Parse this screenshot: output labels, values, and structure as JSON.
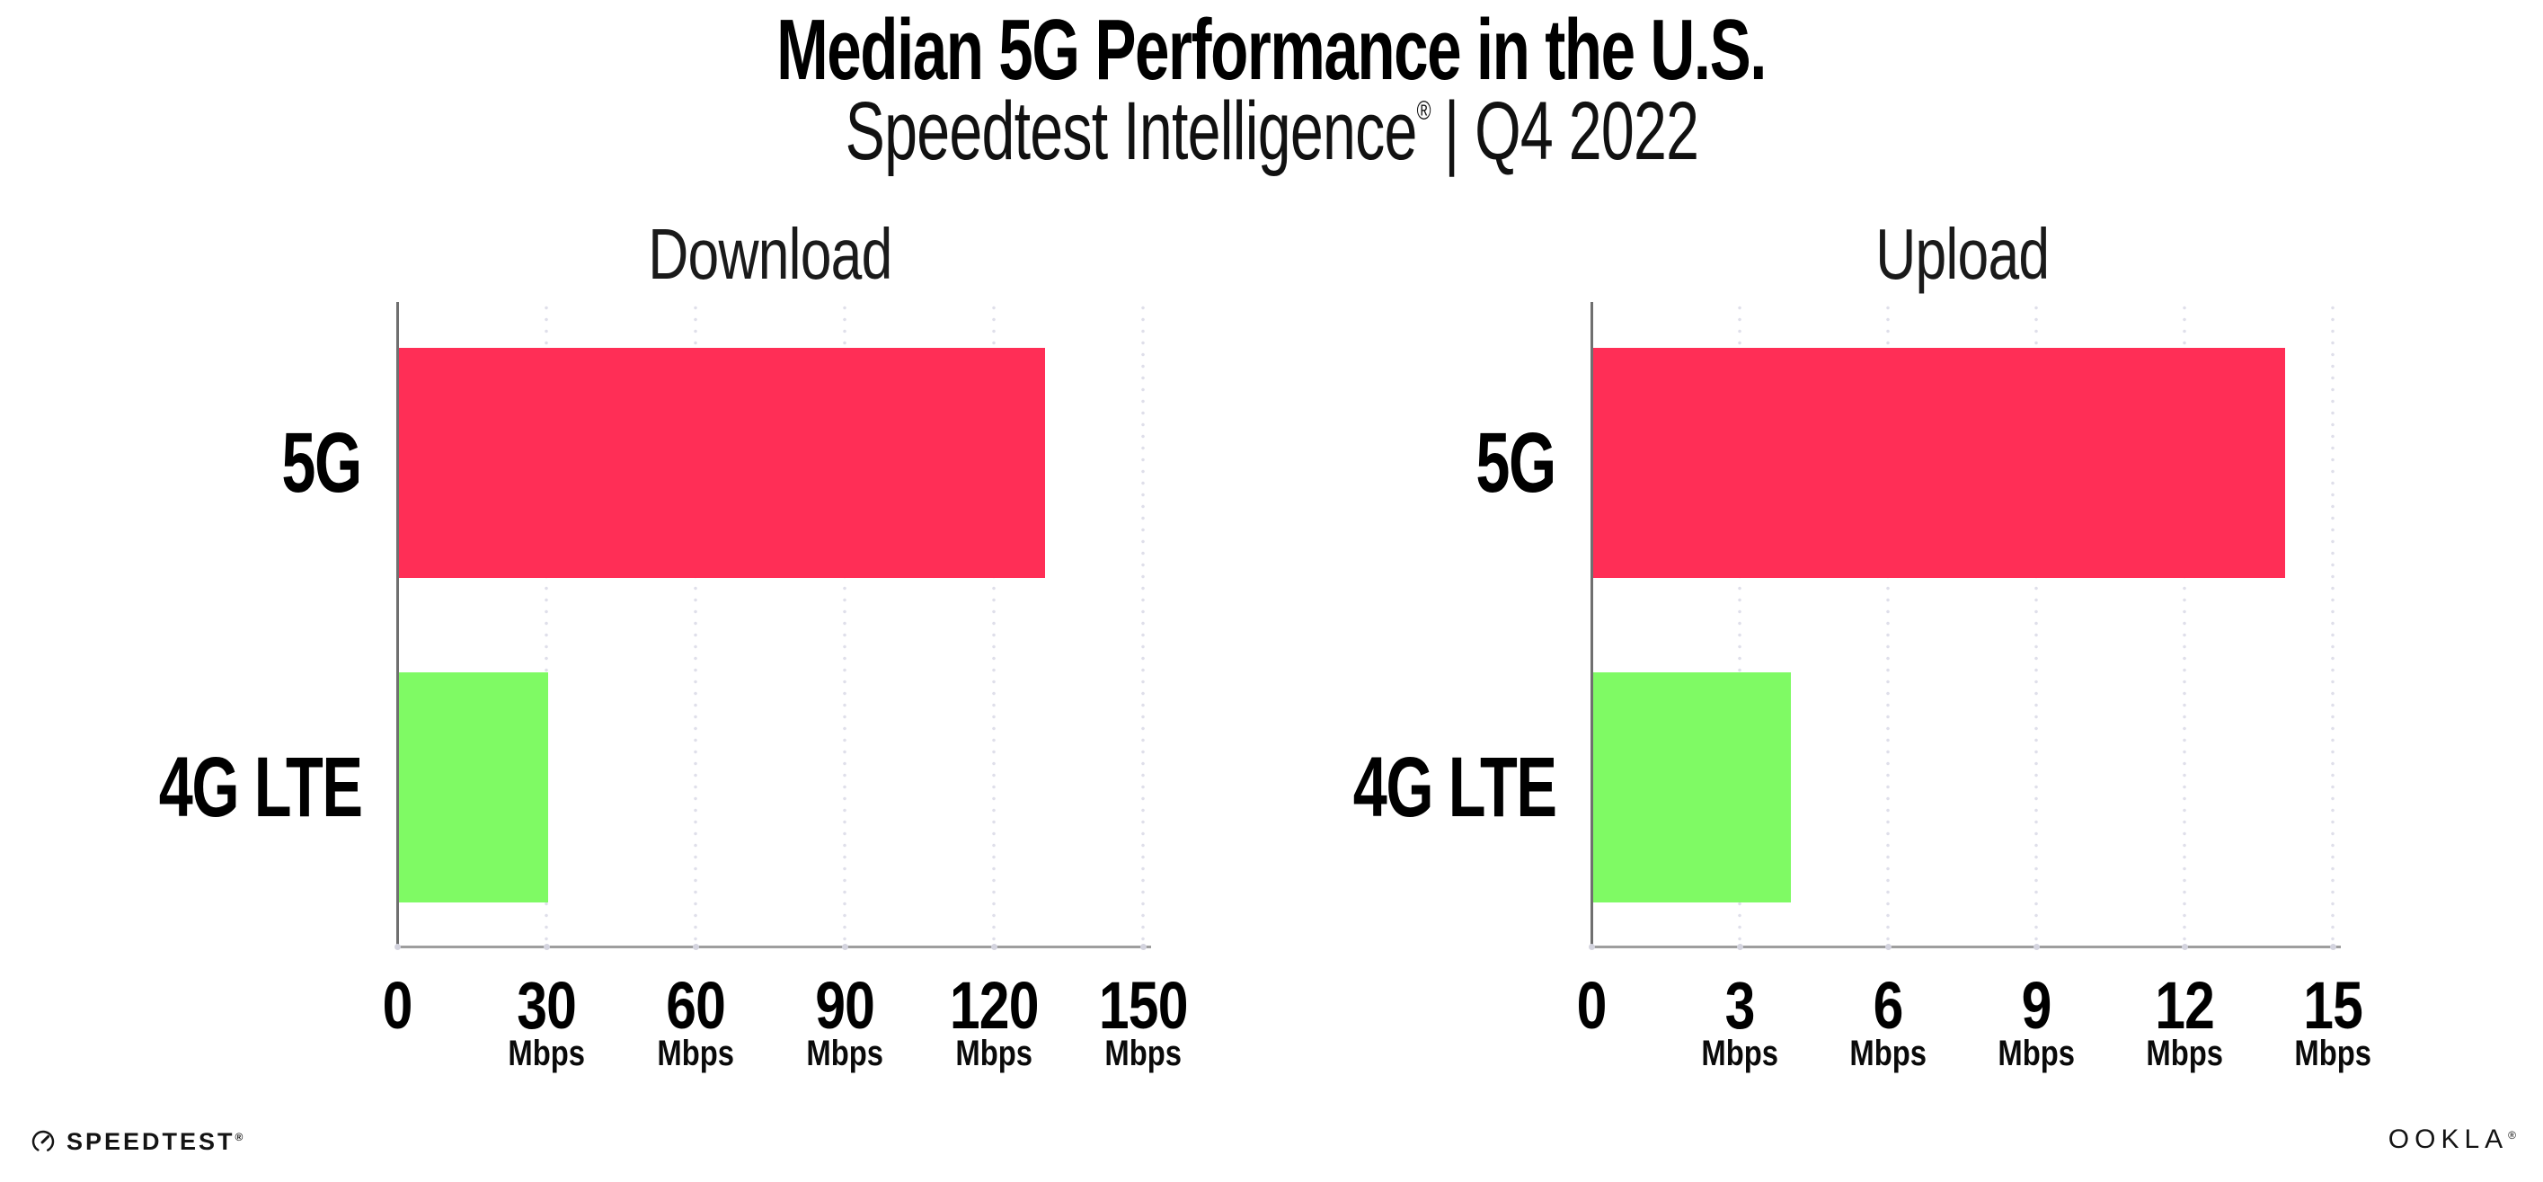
{
  "header": {
    "title": "Median 5G Performance in the U.S.",
    "subtitle_brand": "Speedtest Intelligence",
    "subtitle_reg": "®",
    "subtitle_rest": "| Q4 2022"
  },
  "footer": {
    "speedtest_label": "SPEEDTEST",
    "speedtest_reg": "®",
    "ookla_label": "OOKLA",
    "ookla_reg": "®"
  },
  "colors": {
    "bar_5g": "#FF2E56",
    "bar_4g_lte": "#7FFA64",
    "axis_vertical": "#6F6F6F",
    "axis_horizontal": "#9E9E9E",
    "gridline_dots": "#DFDFEA",
    "text": "#000000"
  },
  "chart_data": [
    {
      "type": "bar",
      "orientation": "horizontal",
      "title": "Download",
      "categories": [
        "5G",
        "4G LTE"
      ],
      "values": [
        130,
        30
      ],
      "bar_colors": [
        "#FF2E56",
        "#7FFA64"
      ],
      "xlim": [
        0,
        150
      ],
      "xticks": [
        0,
        30,
        60,
        90,
        120,
        150
      ],
      "tick_unit": "Mbps",
      "unit_on_zero": false,
      "grid": true,
      "legend": "none"
    },
    {
      "type": "bar",
      "orientation": "horizontal",
      "title": "Upload",
      "categories": [
        "5G",
        "4G LTE"
      ],
      "values": [
        14,
        4
      ],
      "bar_colors": [
        "#FF2E56",
        "#7FFA64"
      ],
      "xlim": [
        0,
        15
      ],
      "xticks": [
        0,
        3,
        6,
        9,
        12,
        15
      ],
      "tick_unit": "Mbps",
      "unit_on_zero": false,
      "grid": true,
      "legend": "none"
    }
  ]
}
